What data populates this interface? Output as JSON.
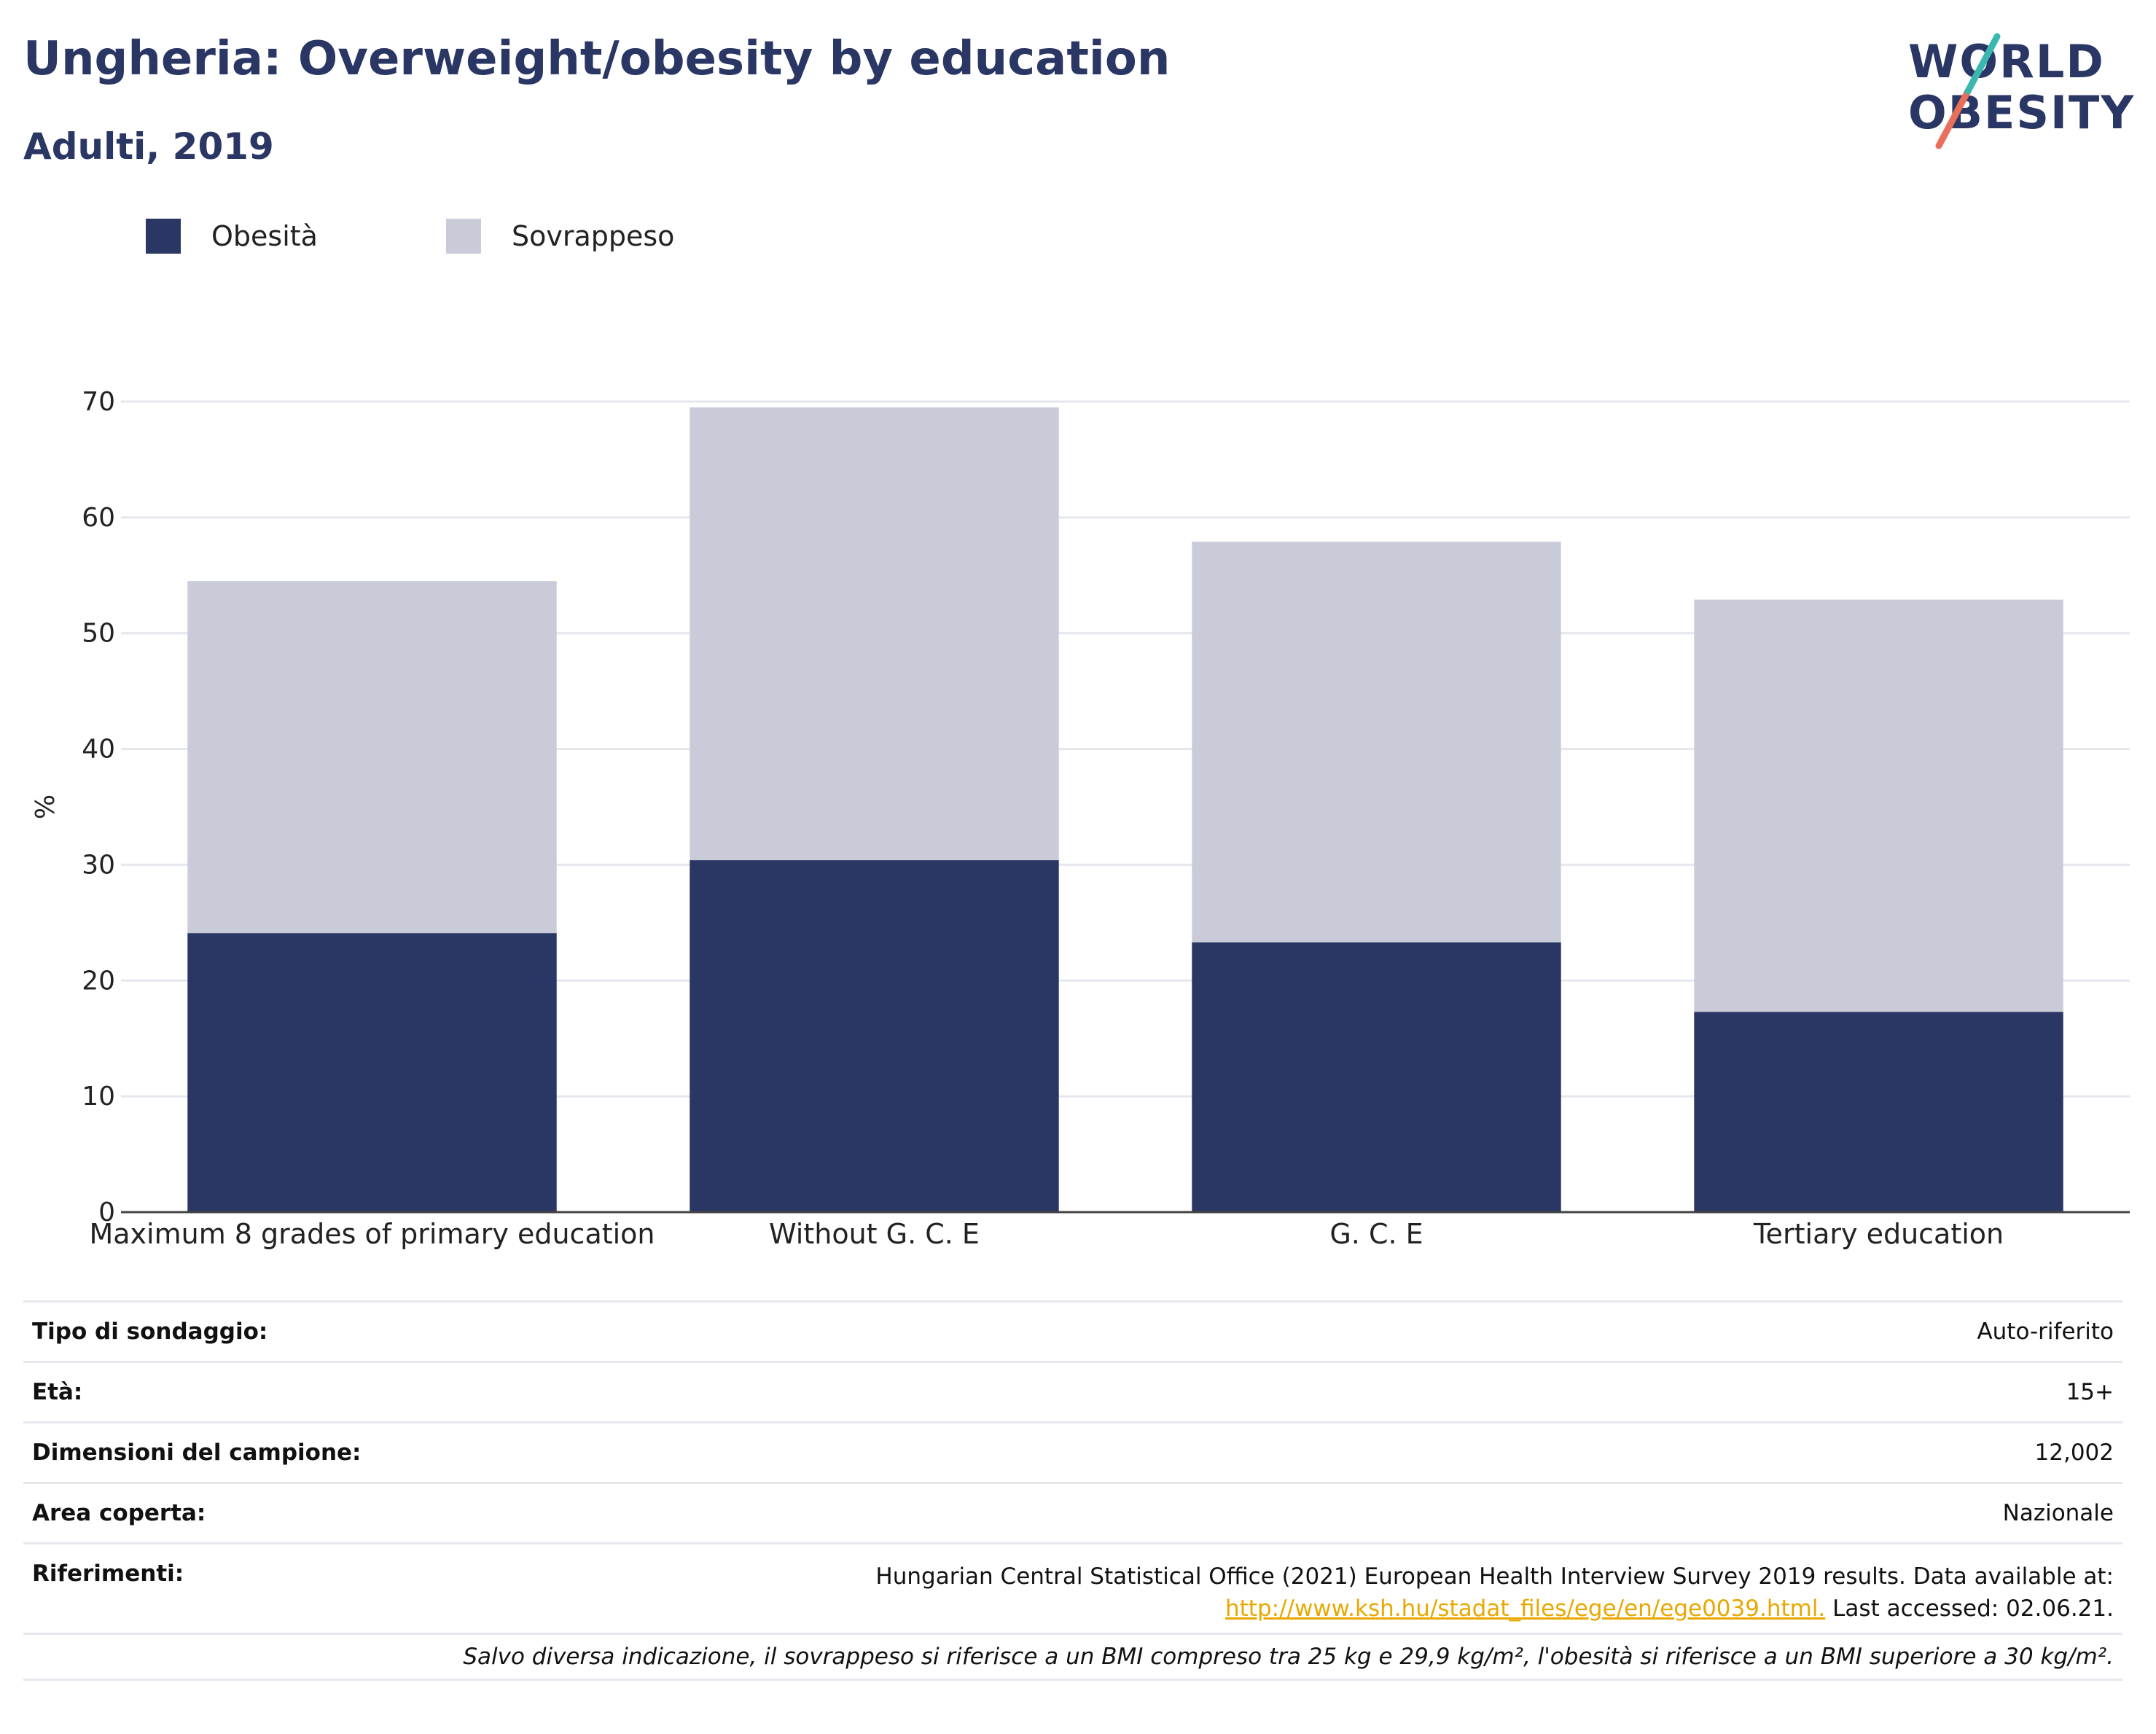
{
  "header": {
    "title": "Ungheria: Overweight/obesity by education",
    "subtitle": "Adulti, 2019"
  },
  "logo": {
    "line1": "WORLD",
    "line2": "OBESITY"
  },
  "legend": [
    {
      "label": "Obesità",
      "color": "#2a3663"
    },
    {
      "label": "Sovrappeso",
      "color": "#c9ccd8"
    }
  ],
  "chart_data": {
    "type": "bar",
    "stacked": true,
    "categories": [
      "Maximum 8 grades of primary education",
      "Without G. C. E",
      "G. C. E",
      "Tertiary education"
    ],
    "series": [
      {
        "name": "Obesità",
        "values": [
          24.1,
          30.4,
          23.3,
          17.3
        ],
        "color": "#2a3663"
      },
      {
        "name": "Sovrappeso",
        "values": [
          30.4,
          39.1,
          34.6,
          35.6
        ],
        "color": "#c9ccd8"
      }
    ],
    "ylabel": "%",
    "ylim": [
      0,
      70
    ],
    "yticks": [
      0,
      10,
      20,
      30,
      40,
      50,
      60,
      70
    ],
    "grid": true,
    "legend_position": "top-left"
  },
  "info": {
    "survey_type": {
      "label": "Tipo di sondaggio:",
      "value": "Auto-riferito"
    },
    "age": {
      "label": "Età:",
      "value": "15+"
    },
    "sample_size": {
      "label": "Dimensioni del campione:",
      "value": "12,002"
    },
    "area": {
      "label": "Area coperta:",
      "value": "Nazionale"
    },
    "references": {
      "label": "Riferimenti:",
      "line1": "Hungarian Central Statistical Office (2021) European Health Interview Survey 2019 results. Data available at:",
      "link": "http://www.ksh.hu/stadat_files/ege/en/ege0039.html.",
      "after_link": " Last accessed: 02.06.21."
    },
    "note": "Salvo diversa indicazione, il sovrappeso si riferisce a un BMI compreso tra 25 kg e 29,9 kg/m², l'obesità si riferisce a un BMI superiore a 30 kg/m²."
  }
}
